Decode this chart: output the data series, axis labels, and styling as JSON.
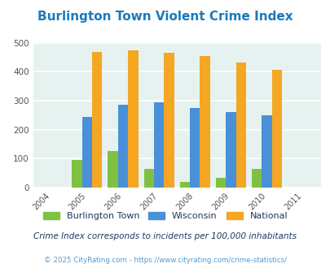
{
  "title": "Burlington Town Violent Crime Index",
  "title_color": "#1a7abd",
  "years": [
    2004,
    2005,
    2006,
    2007,
    2008,
    2009,
    2010,
    2011
  ],
  "data_years": [
    2005,
    2006,
    2007,
    2008,
    2009,
    2010
  ],
  "burlington": [
    94,
    125,
    65,
    20,
    35,
    65
  ],
  "wisconsin": [
    244,
    285,
    294,
    275,
    260,
    250
  ],
  "national": [
    469,
    473,
    467,
    455,
    432,
    407
  ],
  "burlington_color": "#7fc241",
  "wisconsin_color": "#4a90d9",
  "national_color": "#f5a623",
  "ylim": [
    0,
    500
  ],
  "yticks": [
    0,
    100,
    200,
    300,
    400,
    500
  ],
  "bg_color": "#e6f2f0",
  "legend_labels": [
    "Burlington Town",
    "Wisconsin",
    "National"
  ],
  "footnote1": "Crime Index corresponds to incidents per 100,000 inhabitants",
  "footnote2": "© 2025 CityRating.com - https://www.cityrating.com/crime-statistics/",
  "footnote1_color": "#1a3a5c",
  "footnote2_color": "#5599cc",
  "bar_width": 0.28,
  "grid_color": "#ffffff",
  "tick_color": "#555555"
}
